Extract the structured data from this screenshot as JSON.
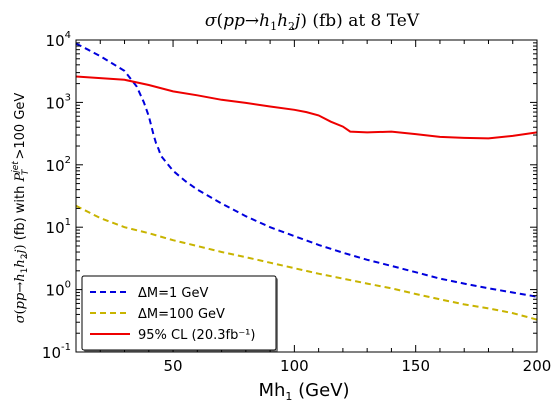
{
  "chart_data": {
    "type": "line",
    "title": "σ(pp→h₁h₂j) (fb) at 8 TeV",
    "xlabel": "Mh₁ (GeV)",
    "ylabel": "σ(pp→h₁h₂j) (fb) with P_T^jet >100 GeV",
    "xlim": [
      10,
      200
    ],
    "ylim": [
      0.1,
      10000
    ],
    "yscale": "log",
    "x_ticks": [
      "50",
      "100",
      "150",
      "200"
    ],
    "y_ticks": [
      "10⁻¹",
      "10⁰",
      "10¹",
      "10²",
      "10³",
      "10⁴"
    ],
    "legend_position": "lower-left",
    "grid": false,
    "series": [
      {
        "name": "ΔM=1 GeV",
        "color": "#0000dd",
        "style": "dashed",
        "x": [
          10,
          15,
          20,
          25,
          30,
          35,
          38,
          40,
          42,
          43,
          44,
          45,
          48,
          50,
          55,
          60,
          70,
          80,
          90,
          100,
          110,
          120,
          130,
          140,
          150,
          160,
          170,
          180,
          190,
          200
        ],
        "y": [
          8800,
          7000,
          5500,
          4200,
          3200,
          1800,
          1000,
          600,
          300,
          220,
          180,
          140,
          100,
          80,
          55,
          40,
          24,
          15,
          10,
          7.2,
          5.2,
          3.9,
          3,
          2.4,
          1.9,
          1.5,
          1.25,
          1.05,
          0.9,
          0.77
        ]
      },
      {
        "name": "ΔM=100 GeV",
        "color": "#c8b400",
        "style": "dashed",
        "x": [
          10,
          20,
          30,
          40,
          50,
          60,
          70,
          80,
          90,
          100,
          110,
          120,
          130,
          140,
          150,
          160,
          170,
          180,
          190,
          200
        ],
        "y": [
          22,
          14,
          10,
          8,
          6.2,
          5,
          4,
          3.3,
          2.7,
          2.2,
          1.8,
          1.5,
          1.25,
          1.05,
          0.85,
          0.7,
          0.58,
          0.5,
          0.42,
          0.33
        ]
      },
      {
        "name": "95% CL (20.3fb⁻¹)",
        "color": "#ee0000",
        "style": "solid",
        "x": [
          10,
          30,
          40,
          50,
          60,
          70,
          80,
          90,
          100,
          105,
          110,
          115,
          120,
          123,
          130,
          140,
          150,
          160,
          170,
          180,
          190,
          200
        ],
        "y": [
          2600,
          2300,
          1900,
          1500,
          1300,
          1100,
          980,
          860,
          760,
          700,
          620,
          490,
          410,
          340,
          330,
          340,
          310,
          280,
          270,
          265,
          290,
          330
        ]
      }
    ]
  }
}
